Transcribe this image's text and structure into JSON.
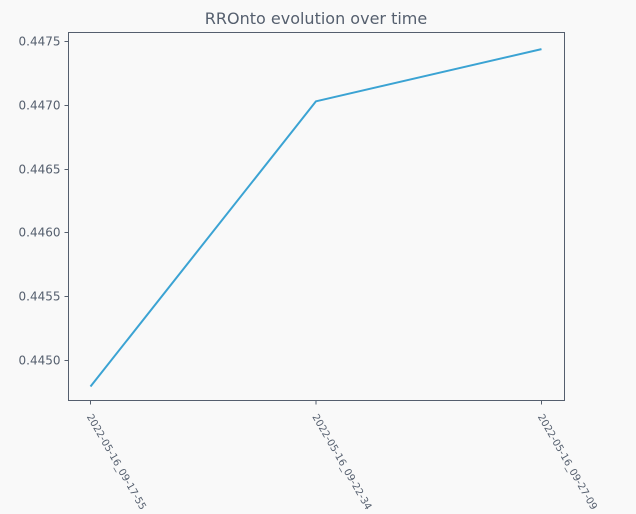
{
  "colors": {
    "background": "#f9f9f9",
    "axes": "#555f6e",
    "text": "#555f6e",
    "line": "#3ba3d3"
  },
  "chart_data": {
    "type": "line",
    "title": "RROnto evolution over time",
    "xlabel": "",
    "ylabel": "",
    "categories": [
      "2022-05-16_09-17-55",
      "2022-05-16_09-22-34",
      "2022-05-16_09-27-09"
    ],
    "series": [
      {
        "values": [
          0.44479,
          0.44703,
          0.44744
        ]
      }
    ],
    "ylim": [
      0.44468,
      0.44757
    ],
    "yticks": [
      0.445,
      0.4455,
      0.446,
      0.4465,
      0.447,
      0.4475
    ],
    "ytick_labels": [
      "0.4450",
      "0.4455",
      "0.4460",
      "0.4465",
      "0.4470",
      "0.4475"
    ],
    "grid": false,
    "legend": "none"
  }
}
